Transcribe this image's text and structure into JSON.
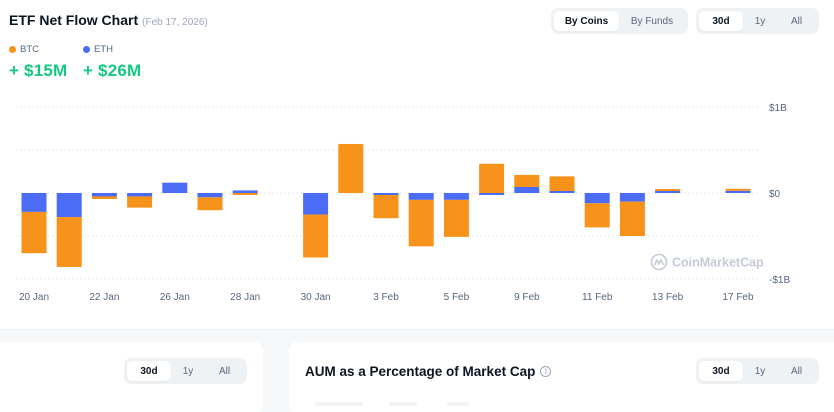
{
  "header": {
    "title": "ETF Net Flow Chart",
    "date": "(Feb 17, 2026)"
  },
  "legend": [
    {
      "label": "BTC",
      "value": "+ $15M",
      "color": "#f7931a"
    },
    {
      "label": "ETH",
      "value": "+ $26M",
      "color": "#4c6cf5"
    }
  ],
  "view_toggle": {
    "options": [
      "By Coins",
      "By Funds"
    ],
    "selected": "By Coins"
  },
  "range_toggle": {
    "options": [
      "30d",
      "1y",
      "All"
    ],
    "selected": "30d"
  },
  "watermark": "CoinMarketCap",
  "chart_data": {
    "type": "bar",
    "stacked": true,
    "title": "ETF Net Flow Chart",
    "subtitle": "(Feb 17, 2026)",
    "xlabel": "",
    "ylabel": "",
    "ylim": [
      -1.0,
      1.0
    ],
    "yunit": "USD billions",
    "y_ticks": [
      "$1B",
      "$0",
      "-$1B"
    ],
    "grid": true,
    "legend_position": "top-left",
    "x_tick_labels": [
      "20 Jan",
      "22 Jan",
      "26 Jan",
      "28 Jan",
      "30 Jan",
      "3 Feb",
      "5 Feb",
      "9 Feb",
      "11 Feb",
      "13 Feb",
      "17 Feb"
    ],
    "categories": [
      "20 Jan",
      "21 Jan",
      "22 Jan",
      "23 Jan",
      "26 Jan",
      "27 Jan",
      "28 Jan",
      "29 Jan",
      "30 Jan",
      "2 Feb",
      "3 Feb",
      "4 Feb",
      "5 Feb",
      "6 Feb",
      "9 Feb",
      "10 Feb",
      "11 Feb",
      "12 Feb",
      "13 Feb",
      "16 Feb",
      "17 Feb"
    ],
    "series": [
      {
        "name": "ETH",
        "color": "#4c6cf5",
        "values": [
          -0.22,
          -0.28,
          -0.04,
          -0.04,
          0.12,
          -0.05,
          0.03,
          0,
          -0.25,
          0,
          -0.01,
          -0.08,
          -0.08,
          -0.02,
          0.07,
          0.01,
          -0.12,
          -0.1,
          0.01,
          0,
          0.026
        ]
      },
      {
        "name": "BTC",
        "color": "#f7931a",
        "values": [
          -0.48,
          -0.58,
          -0.03,
          -0.13,
          0,
          -0.15,
          -0.01,
          0,
          -0.5,
          0.57,
          -0.27,
          -0.54,
          -0.43,
          0.34,
          0.14,
          0.17,
          -0.28,
          -0.4,
          0.004,
          0,
          0.015
        ]
      }
    ]
  },
  "bottom_left": {
    "range_toggle": {
      "options": [
        "30d",
        "1y",
        "All"
      ],
      "selected": "30d"
    }
  },
  "bottom_right": {
    "title": "AUM as a Percentage of Market Cap",
    "info_icon": "info-icon",
    "range_toggle": {
      "options": [
        "30d",
        "1y",
        "All"
      ],
      "selected": "30d"
    }
  }
}
